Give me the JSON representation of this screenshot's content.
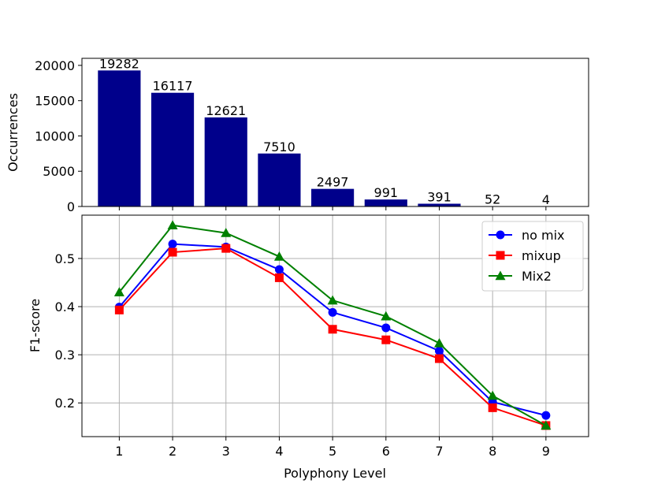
{
  "chart_data": [
    {
      "type": "bar",
      "categories": [
        "1",
        "2",
        "3",
        "4",
        "5",
        "6",
        "7",
        "8",
        "9"
      ],
      "values": [
        19282,
        16117,
        12621,
        7510,
        2497,
        991,
        391,
        52,
        4
      ],
      "data_labels": [
        "19282",
        "16117",
        "12621",
        "7510",
        "2497",
        "991",
        "391",
        "52",
        "4"
      ],
      "title": "",
      "xlabel": "",
      "ylabel": "Occurrences",
      "ylim": [
        0,
        21000
      ],
      "yticks": [
        0,
        5000,
        10000,
        15000,
        20000
      ],
      "ytick_labels": [
        "0",
        "5000",
        "10000",
        "15000",
        "20000"
      ],
      "bar_color": "#00008b",
      "grid": false
    },
    {
      "type": "line",
      "x": [
        1,
        2,
        3,
        4,
        5,
        6,
        7,
        8,
        9
      ],
      "series": [
        {
          "name": "no mix",
          "values": [
            0.399,
            0.53,
            0.524,
            0.477,
            0.388,
            0.356,
            0.308,
            0.202,
            0.174
          ],
          "color": "#0000ff",
          "marker": "circle"
        },
        {
          "name": "mixup",
          "values": [
            0.393,
            0.513,
            0.521,
            0.46,
            0.353,
            0.331,
            0.292,
            0.19,
            0.153
          ],
          "color": "#ff0000",
          "marker": "square"
        },
        {
          "name": "Mix2",
          "values": [
            0.43,
            0.569,
            0.553,
            0.504,
            0.413,
            0.38,
            0.324,
            0.215,
            0.153
          ],
          "color": "#008000",
          "marker": "triangle"
        }
      ],
      "title": "",
      "xlabel": "Polyphony Level",
      "ylabel": "F1-score",
      "xlim": [
        0.3,
        9.8
      ],
      "ylim": [
        0.13,
        0.59
      ],
      "xticks": [
        1,
        2,
        3,
        4,
        5,
        6,
        7,
        8,
        9
      ],
      "xtick_labels": [
        "1",
        "2",
        "3",
        "4",
        "5",
        "6",
        "7",
        "8",
        "9"
      ],
      "yticks": [
        0.2,
        0.3,
        0.4,
        0.5
      ],
      "ytick_labels": [
        "0.2",
        "0.3",
        "0.4",
        "0.5"
      ],
      "grid": true,
      "legend": "top-right"
    }
  ]
}
